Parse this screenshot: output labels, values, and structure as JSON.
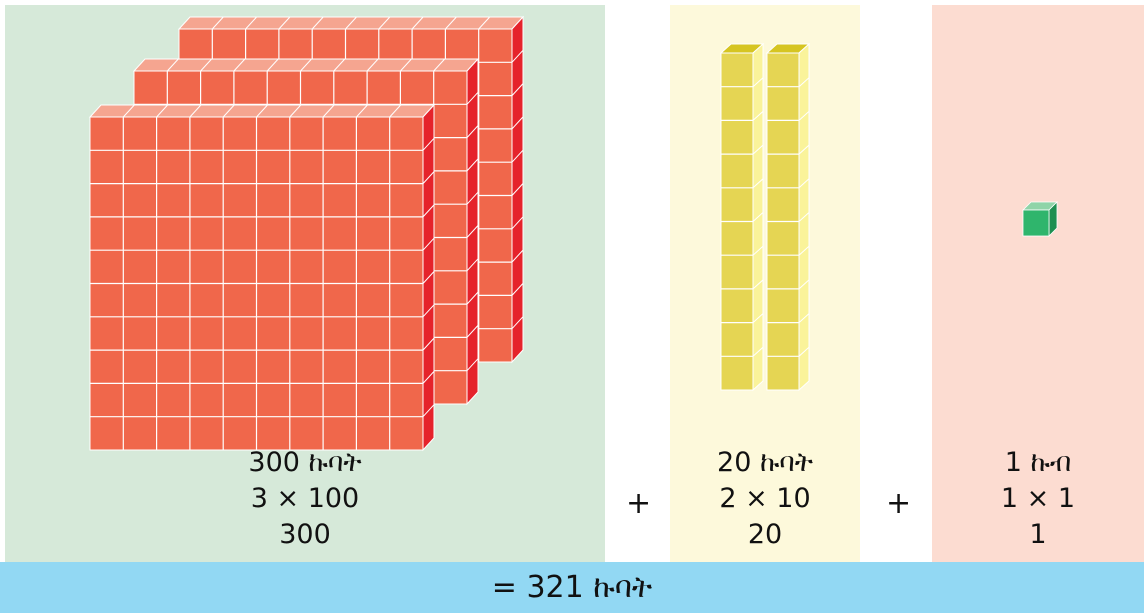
{
  "hundreds": {
    "count_label": "300 ኩባት",
    "expression": "3 × 100",
    "value": "300",
    "flats": 3
  },
  "tens": {
    "count_label": "20 ኩባት",
    "expression": "2 × 10",
    "value": "20",
    "rods": 2
  },
  "ones": {
    "count_label": "1 ኩብ",
    "expression": "1 × 1",
    "value": "1",
    "cubes": 1
  },
  "plus_sign": "+",
  "total": "= 321 ኩባት",
  "colors": {
    "hundreds_bg": "#d6e9d9",
    "tens_bg": "#fdf9db",
    "ones_bg": "#fcdcd1",
    "total_bg": "#92d8f3",
    "flat_front": "#f0674b",
    "flat_top": "#f5a590",
    "flat_side": "#e5232b",
    "rod_front": "#e5d553",
    "rod_top": "#d6c521",
    "rod_side": "#faf39a",
    "cube_front": "#2fb56c",
    "cube_top": "#8fd4a8",
    "cube_side": "#1e8f51"
  }
}
